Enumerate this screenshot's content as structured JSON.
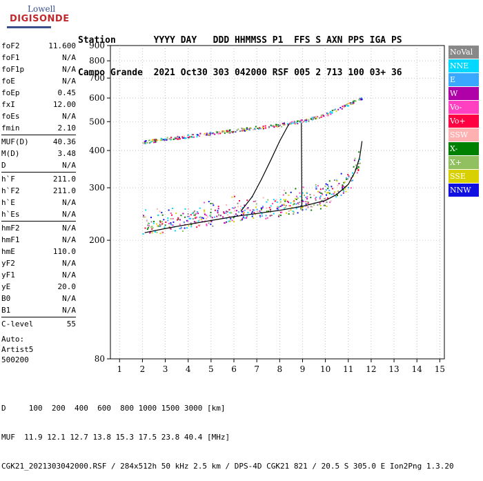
{
  "logo": {
    "line1": "Lowell",
    "line2": "DIGISONDE"
  },
  "header": {
    "row1": "Station       YYYY DAY   DDD HHMMSS P1  FFS S AXN PPS IGA PS",
    "row2": "Campo Grande  2021 Oct30 303 042000 RSF 005 2 713 100 03+ 36"
  },
  "params": [
    {
      "label": "foF2",
      "value": "11.600"
    },
    {
      "label": "foF1",
      "value": "N/A"
    },
    {
      "label": "foF1p",
      "value": "N/A"
    },
    {
      "label": "foE",
      "value": "N/A"
    },
    {
      "label": "foEp",
      "value": "0.45"
    },
    {
      "label": "fxI",
      "value": "12.00"
    },
    {
      "label": "foEs",
      "value": "N/A"
    },
    {
      "label": "fmin",
      "value": "2.10"
    },
    {
      "label": "MUF(D)",
      "value": "40.36"
    },
    {
      "label": "M(D)",
      "value": "3.48"
    },
    {
      "label": "D",
      "value": "N/A"
    },
    {
      "label": "h`F",
      "value": "211.0"
    },
    {
      "label": "h`F2",
      "value": "211.0"
    },
    {
      "label": "h`E",
      "value": "N/A"
    },
    {
      "label": "h`Es",
      "value": "N/A"
    },
    {
      "label": "hmF2",
      "value": "N/A"
    },
    {
      "label": "hmF1",
      "value": "N/A"
    },
    {
      "label": "hmE",
      "value": "110.0"
    },
    {
      "label": "yF2",
      "value": "N/A"
    },
    {
      "label": "yF1",
      "value": "N/A"
    },
    {
      "label": "yE",
      "value": "20.0"
    },
    {
      "label": "B0",
      "value": "N/A"
    },
    {
      "label": "B1",
      "value": "N/A"
    },
    {
      "label": "C-level",
      "value": "55"
    }
  ],
  "auto": {
    "line1": "Auto:",
    "line2": "Artist5",
    "line3": "500200"
  },
  "legend": [
    {
      "label": "NoVal",
      "color": "#888888"
    },
    {
      "label": "NNE",
      "color": "#00d8ff"
    },
    {
      "label": "E",
      "color": "#3aa8ff"
    },
    {
      "label": "W",
      "color": "#b000a8"
    },
    {
      "label": "Vo-",
      "color": "#ff40c0"
    },
    {
      "label": "Vo+",
      "color": "#ff0040"
    },
    {
      "label": "SSW",
      "color": "#ffb0b0"
    },
    {
      "label": "X-",
      "color": "#008000"
    },
    {
      "label": "X+",
      "color": "#90c060"
    },
    {
      "label": "SSE",
      "color": "#d8d000"
    },
    {
      "label": "NNW",
      "color": "#1010e0"
    }
  ],
  "footer": {
    "line1": "D     100  200  400  600  800 1000 1500 3000 [km]",
    "line2": "MUF  11.9 12.1 12.7 13.8 15.3 17.5 23.8 40.4 [MHz]",
    "line3": "CGK21_2021303042000.RSF / 284x512h 50 kHz 2.5 km / DPS-4D CGK21 821 / 20.5 S 305.0 E Ion2Png 1.3.20"
  },
  "chart_data": {
    "type": "scatter",
    "x_ticks": [
      1,
      2,
      3,
      4,
      5,
      6,
      7,
      8,
      9,
      10,
      11,
      12,
      13,
      14,
      15
    ],
    "y_ticks": [
      80,
      200,
      300,
      400,
      500,
      600,
      700,
      800,
      900
    ],
    "xlim": [
      0.6,
      15.2
    ],
    "ylim": [
      80,
      900
    ],
    "y_scale": "log",
    "grid": "dotted",
    "traces": [
      {
        "name": "",
        "x": [
          2.1,
          3,
          4,
          5,
          6,
          7,
          8,
          9,
          10,
          10.5,
          11,
          11.3,
          11.5,
          11.6
        ],
        "y": [
          212,
          219,
          226,
          233,
          240,
          246,
          252,
          260,
          272,
          285,
          308,
          340,
          380,
          430
        ]
      },
      {
        "name": "",
        "x": [
          6.3,
          6.8,
          7.2,
          7.6,
          8.0,
          8.4
        ],
        "y": [
          250,
          280,
          320,
          370,
          430,
          490
        ]
      },
      {
        "name": "",
        "x": [
          8.95,
          8.97
        ],
        "y": [
          495,
          260
        ]
      }
    ],
    "bands": [
      {
        "name": "F2-X band",
        "x": [
          2.0,
          4.0,
          6.0,
          8.0,
          9.0,
          10.0,
          10.8,
          11.6
        ],
        "y": [
          425,
          445,
          465,
          485,
          500,
          525,
          560,
          600
        ]
      },
      {
        "name": "F-O band",
        "x": [
          2.0,
          4.0,
          6.0,
          8.0,
          9.0,
          10.0,
          11.0,
          11.5
        ],
        "y": [
          215,
          225,
          238,
          250,
          258,
          270,
          300,
          350
        ]
      }
    ]
  }
}
